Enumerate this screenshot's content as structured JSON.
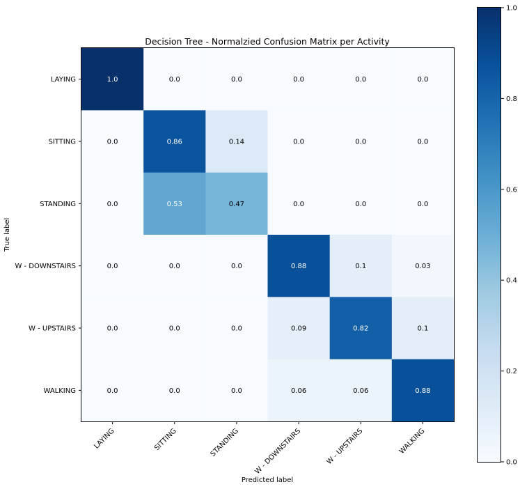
{
  "chart_data": {
    "type": "heatmap",
    "title": "Decision Tree - Normalzied Confusion Matrix per Activity",
    "xlabel": "Predicted label",
    "ylabel": "True label",
    "x_categories": [
      "LAYING",
      "SITTING",
      "STANDING",
      "W - DOWNSTAIRS",
      "W - UPSTAIRS",
      "WALKING"
    ],
    "y_categories": [
      "LAYING",
      "SITTING",
      "STANDING",
      "W - DOWNSTAIRS",
      "W - UPSTAIRS",
      "WALKING"
    ],
    "values": [
      [
        1.0,
        0.0,
        0.0,
        0.0,
        0.0,
        0.0
      ],
      [
        0.0,
        0.86,
        0.14,
        0.0,
        0.0,
        0.0
      ],
      [
        0.0,
        0.53,
        0.47,
        0.0,
        0.0,
        0.0
      ],
      [
        0.0,
        0.0,
        0.0,
        0.88,
        0.1,
        0.03
      ],
      [
        0.0,
        0.0,
        0.0,
        0.09,
        0.82,
        0.1
      ],
      [
        0.0,
        0.0,
        0.0,
        0.06,
        0.06,
        0.88
      ]
    ],
    "cell_labels": [
      [
        "1.0",
        "0.0",
        "0.0",
        "0.0",
        "0.0",
        "0.0"
      ],
      [
        "0.0",
        "0.86",
        "0.14",
        "0.0",
        "0.0",
        "0.0"
      ],
      [
        "0.0",
        "0.53",
        "0.47",
        "0.0",
        "0.0",
        "0.0"
      ],
      [
        "0.0",
        "0.0",
        "0.0",
        "0.88",
        "0.1",
        "0.03"
      ],
      [
        "0.0",
        "0.0",
        "0.0",
        "0.09",
        "0.82",
        "0.1"
      ],
      [
        "0.0",
        "0.0",
        "0.0",
        "0.06",
        "0.06",
        "0.88"
      ]
    ],
    "colormap": "Blues",
    "colorbar": {
      "range": [
        0.0,
        1.0
      ],
      "ticks": [
        0.0,
        0.2,
        0.4,
        0.6,
        0.8,
        1.0
      ],
      "tick_labels": [
        "0.0",
        "0.2",
        "0.4",
        "0.6",
        "0.8",
        "1.0"
      ]
    },
    "label_color_light": "#ffffff",
    "label_color_dark": "#000000",
    "x_tick_rotation_deg": 45
  }
}
